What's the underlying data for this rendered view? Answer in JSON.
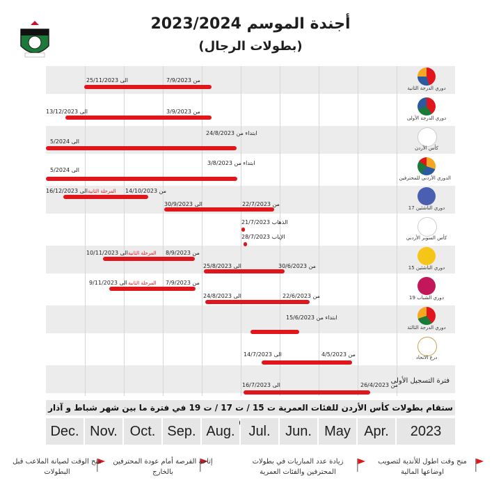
{
  "header": {
    "title": "أجندة الموسم 2023/2024",
    "subtitle": "(بطولات الرجال)"
  },
  "colors": {
    "bar": "#e0161c",
    "band": "#ececec",
    "month_bg": "#e6e6e6"
  },
  "rows": [
    {
      "name": "دوري الدرجة الثانية",
      "icon": "league-ball-icon",
      "bars": [
        {
          "from_label": "من 7/9/2023",
          "to_label": "الى 25/11/2023"
        }
      ]
    },
    {
      "name": "دوري الدرجة الأولى",
      "icon": "league-ball-icon",
      "bars": [
        {
          "from_label": "من 3/9/2023",
          "to_label": "الى 13/12/2023"
        }
      ]
    },
    {
      "name": "كأس الأردن",
      "icon": "cup-icon",
      "bars": [
        {
          "from_label": "ابتداء من 24/8/2023",
          "to_label": "الى 5/2024"
        }
      ]
    },
    {
      "name": "الدوري الأردني للمحترفين",
      "icon": "pro-league-icon",
      "bars": [
        {
          "from_label": "ابتداء من 3/8/2023",
          "to_label": "الى 5/2024"
        }
      ]
    },
    {
      "name": "دوري الناشئين 17",
      "icon": "u17-icon",
      "bars": [
        {
          "from_label": "من 22/7/2023",
          "to_label": "الى 30/9/2023"
        },
        {
          "from_label": "من 14/10/2023",
          "to_label": "الى 16/12/2023",
          "tag": "المرحلة الثانية"
        }
      ]
    },
    {
      "name": "كأس السوبر الأردني",
      "icon": "super-cup-icon",
      "bars": [
        {
          "from_label": "الذهاب 21/7/2023"
        },
        {
          "from_label": "الإياب 28/7/2023"
        }
      ]
    },
    {
      "name": "دوري الناشئين 15",
      "icon": "u15-icon",
      "bars": [
        {
          "from_label": "من 30/6/2023",
          "to_label": "الى 25/8/2023"
        },
        {
          "from_label": "من 8/9/2023",
          "to_label": "الى 10/11/2023",
          "tag": "المرحلة الثانية"
        }
      ]
    },
    {
      "name": "دوري الشباب 19",
      "icon": "u19-icon",
      "bars": [
        {
          "from_label": "من 22/6/2023",
          "to_label": "الى 24/8/2023"
        },
        {
          "from_label": "من 7/9/2023",
          "to_label": "الى 9/11/2023",
          "tag": "المرحلة الثانية"
        }
      ]
    },
    {
      "name": "دوري الدرجة الثالثة",
      "icon": "league-ball-icon",
      "bars": [
        {
          "from_label": "ابتداء من 15/6/2023"
        }
      ]
    },
    {
      "name": "درع الاتحاد",
      "icon": "shield-icon",
      "bars": [
        {
          "from_label": "من 4/5/2023",
          "to_label": "الى 14/7/2023"
        }
      ]
    },
    {
      "name": "فترة التسجيل الأولى",
      "icon": "",
      "bars": [
        {
          "from_label": "من 26/4/2023",
          "to_label": "الى 16/7/2023"
        }
      ]
    }
  ],
  "note": "ستقام بطولات كأس الأردن للفئات العمرية ت 15 / ت 17 / ت 19 في فترة ما بين شهر شباط و آذار لعام 2024",
  "months": [
    "Dec.",
    "Nov.",
    "Oct.",
    "Sep.",
    "Aug.",
    "Jul.",
    "Jun.",
    "May",
    "Apr.",
    "2023"
  ],
  "footer": [
    "منح الوقت لصيانة الملاعب قبل البطولات",
    "إتاحة الفرصة أمام عودة المحترفين بالخارج",
    "زيادة عدد المباريات في بطولات المحترفين والفئات العمرية",
    "منح وقت اطول للأندية لتصويب اوضاعها المالية"
  ]
}
